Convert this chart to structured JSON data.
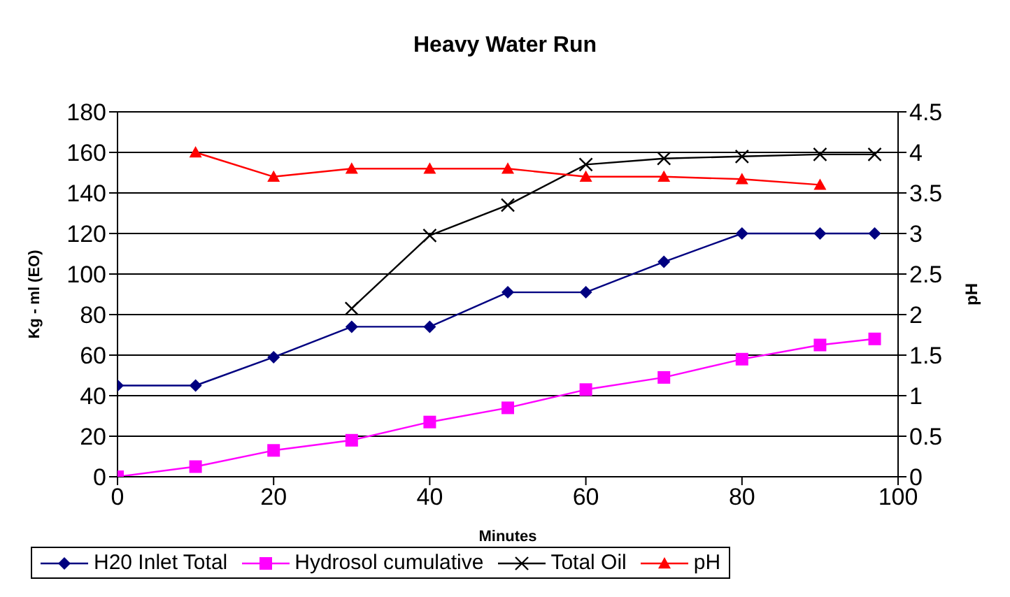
{
  "chart_data": {
    "type": "line",
    "title": "Heavy Water Run",
    "xlabel": "Minutes",
    "ylabel": "Kg - ml (EO)",
    "y2label": "pH",
    "x": [
      0,
      10,
      20,
      30,
      40,
      50,
      60,
      70,
      80,
      90,
      97
    ],
    "series": [
      {
        "name": "H20 Inlet Total",
        "color": "#000080",
        "marker": "diamond",
        "values": [
          45,
          45,
          59,
          74,
          74,
          91,
          91,
          106,
          120,
          120,
          120
        ]
      },
      {
        "name": "Hydrosol cumulative",
        "color": "#ff00ff",
        "marker": "square",
        "values": [
          0,
          5,
          13,
          18,
          27,
          34,
          43,
          49,
          58,
          65,
          68
        ]
      },
      {
        "name": "Total Oil",
        "color": "#000000",
        "marker": "cross",
        "values": [
          null,
          null,
          null,
          83,
          119,
          134,
          154,
          157,
          158,
          159,
          159
        ]
      },
      {
        "name": "pH",
        "color": "#ff0000",
        "marker": "triangle",
        "axis": "y2",
        "values": [
          null,
          4.0,
          3.7,
          3.8,
          3.8,
          3.8,
          3.7,
          3.7,
          3.67,
          3.6,
          null
        ]
      }
    ],
    "xlim": [
      0,
      100
    ],
    "xticks": [
      0,
      20,
      40,
      60,
      80,
      100
    ],
    "ylim": [
      0,
      180
    ],
    "yticks": [
      0,
      20,
      40,
      60,
      80,
      100,
      120,
      140,
      160,
      180
    ],
    "y2lim": [
      0,
      4.5
    ],
    "y2ticks": [
      0,
      0.5,
      1,
      1.5,
      2,
      2.5,
      3,
      3.5,
      4,
      4.5
    ],
    "grid": "y",
    "legend": "bottom"
  }
}
